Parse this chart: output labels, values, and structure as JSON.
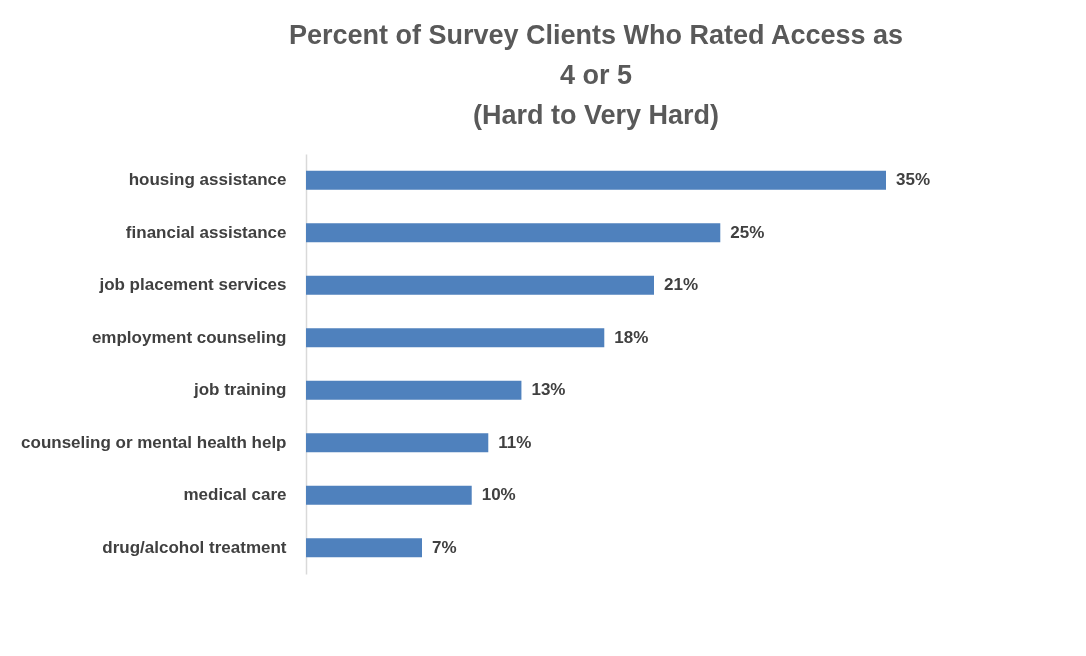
{
  "chart_data": {
    "type": "bar",
    "orientation": "horizontal",
    "title": "Percent of Survey Clients Who Rated Access as\n4 or 5\n(Hard to Very Hard)",
    "categories": [
      "housing assistance",
      "financial assistance",
      "job placement services",
      "employment counseling",
      "job training",
      "counseling or mental health help",
      "medical care",
      "drug/alcohol treatment"
    ],
    "values": [
      35,
      25,
      21,
      18,
      13,
      11,
      10,
      7
    ],
    "value_labels": [
      "35%",
      "25%",
      "21%",
      "18%",
      "13%",
      "11%",
      "10%",
      "7%"
    ],
    "color": "#4f81bd"
  }
}
